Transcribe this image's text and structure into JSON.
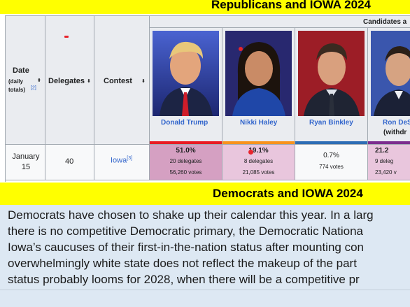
{
  "banner_top": "Republicans and IOWA 2024",
  "table": {
    "headers": {
      "date": "Date",
      "date_sub": "(daily totals)",
      "date_ref": "[2]",
      "delegates": "Delegates",
      "contest": "Contest",
      "candidates": "Candidates a",
      "sort_glyph": "⬍"
    },
    "candidates": [
      {
        "name": "Donald Trump",
        "stripe": "#e81b23",
        "pct": "51.0%",
        "delegates": "20 delegates",
        "votes": "56,260 votes",
        "cell_color": "#d5a0c2"
      },
      {
        "name": "Nikki Haley",
        "stripe": "#f7931e",
        "pct": "19.1%",
        "delegates": "8 delegates",
        "votes": "21,085 votes",
        "cell_color": "#e9c6dd"
      },
      {
        "name": "Ryan Binkley",
        "stripe": "#2e6db4",
        "pct": "0.7%",
        "delegates": "",
        "votes": "774 votes",
        "cell_color": "#f8f9fa"
      },
      {
        "name": "Ron DeS",
        "withdrew": "(withdr",
        "stripe": "#7b2d8e",
        "pct": "21.2",
        "delegates": "9 deleg",
        "votes": "23,420 v",
        "cell_color": "#e9c6dd"
      }
    ],
    "row": {
      "date": "January 15",
      "delegates": "40",
      "contest": "Iowa",
      "contest_ref": "[3]"
    }
  },
  "banner_dem": "Democrats and IOWA 2024",
  "paragraph": {
    "lines": [
      "Democrats have chosen to shake up their calendar this year. In a larg",
      "there is no competitive Democratic primary, the Democratic Nationa",
      "Iowa’s caucuses of their first-in-the-nation status after mounting con",
      "overwhelmingly white state does not reflect the makeup of the part",
      "status probably looms for 2028, when there will be a competitive pr"
    ]
  }
}
